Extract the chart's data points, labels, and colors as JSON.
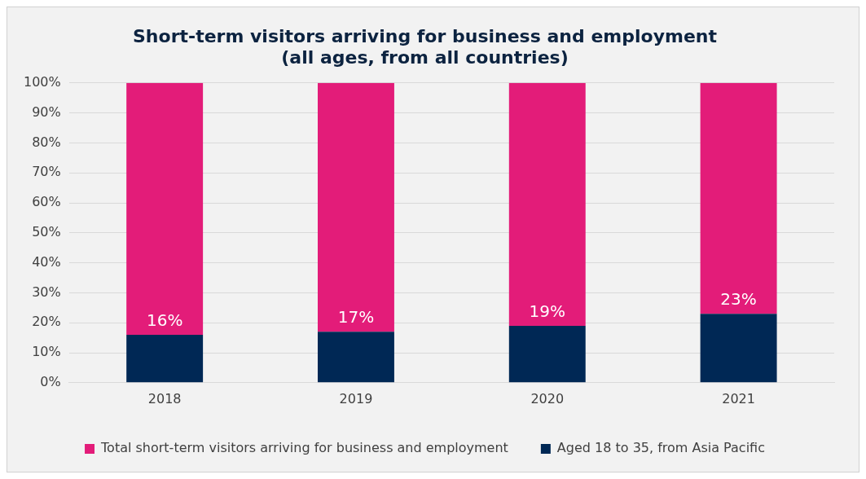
{
  "chart_data": {
    "type": "bar",
    "title": "Short-term visitors arriving for business and employment\n(all ages, from all countries)",
    "categories": [
      "2018",
      "2019",
      "2020",
      "2021"
    ],
    "stacked": true,
    "series": [
      {
        "name": "Aged 18 to 35, from Asia Pacific",
        "color": "#002855",
        "values": [
          16,
          17,
          19,
          23
        ],
        "value_labels": [
          "16%",
          "17%",
          "19%",
          "23%"
        ]
      },
      {
        "name": "Total short-term visitors arriving for business and employment",
        "color": "#e31c79",
        "values": [
          84,
          83,
          81,
          77
        ]
      }
    ],
    "ylim": [
      0,
      100
    ],
    "yticks": [
      {
        "value": 0,
        "label": "0%"
      },
      {
        "value": 10,
        "label": "10%"
      },
      {
        "value": 20,
        "label": "20%"
      },
      {
        "value": 30,
        "label": "30%"
      },
      {
        "value": 40,
        "label": "40%"
      },
      {
        "value": 50,
        "label": "50%"
      },
      {
        "value": 60,
        "label": "60%"
      },
      {
        "value": 70,
        "label": "70%"
      },
      {
        "value": 80,
        "label": "80%"
      },
      {
        "value": 90,
        "label": "90%"
      },
      {
        "value": 100,
        "label": "100%"
      }
    ],
    "grid": "y",
    "legend": "bottom"
  }
}
